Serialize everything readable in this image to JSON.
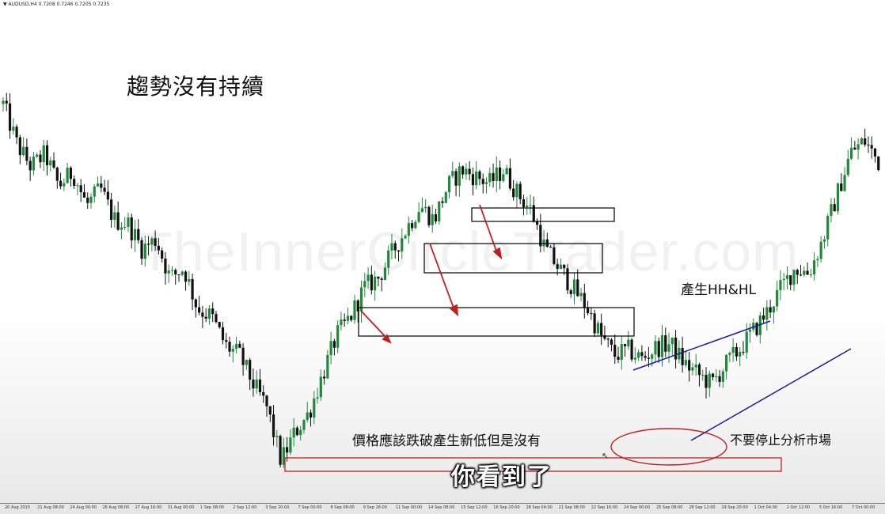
{
  "header": {
    "symbol": "AUDUSD,H4",
    "quote": "0.7208 0.7246 0.7205 0.7235"
  },
  "watermark": "TheInnerCircleTrader.com",
  "annotations": {
    "title": "趨勢沒有持續",
    "hh_hl": "產生HH&HL",
    "should_break": "價格應該跌破產生新低但是沒有",
    "dont_stop": "不要停止分析市場",
    "subtitle": "你看到了"
  },
  "colors": {
    "bull": "#1f8a3a",
    "bear": "#111111",
    "drawn_arrow": "#c0201f",
    "trendline": "#1a1a9a",
    "zone": "#c0201f"
  },
  "chart_data": {
    "type": "candlestick",
    "symbol": "AUDUSD",
    "timeframe": "H4",
    "x_tick_labels": [
      "20 Aug 2015",
      "21 Aug 08:00",
      "24 Aug 00:00",
      "26 Aug 08:00",
      "27 Aug 16:00",
      "31 Aug 00:00",
      "1 Sep 08:00",
      "2 Sep 12:00",
      "3 Sep 20:00",
      "7 Sep 00:00",
      "8 Sep 08:00",
      "9 Sep 16:00",
      "11 Sep 00:00",
      "14 Sep 08:00",
      "15 Sep 12:00",
      "16 Sep 20:00",
      "18 Sep 04:00",
      "21 Sep 08:00",
      "22 Sep 16:00",
      "24 Sep 00:00",
      "25 Sep 08:00",
      "28 Sep 12:00",
      "29 Sep 20:00",
      "1 Oct 04:00",
      "2 Oct 12:00",
      "5 Oct 16:00",
      "7 Oct 00:00"
    ],
    "price_path": [
      0.73,
      0.7258,
      0.7235,
      0.7248,
      0.7215,
      0.723,
      0.7195,
      0.7212,
      0.718,
      0.7176,
      0.715,
      0.716,
      0.712,
      0.713,
      0.7088,
      0.708,
      0.705,
      0.704,
      0.701,
      0.6985,
      0.693,
      0.696,
      0.698,
      0.702,
      0.706,
      0.708,
      0.711,
      0.712,
      0.7146,
      0.717,
      0.7195,
      0.718,
      0.7215,
      0.7232,
      0.7225,
      0.7218,
      0.7232,
      0.7208,
      0.719,
      0.715,
      0.713,
      0.711,
      0.709,
      0.706,
      0.704,
      0.7045,
      0.7036,
      0.7048,
      0.7052,
      0.7032,
      0.702,
      0.701,
      0.703,
      0.7046,
      0.7065,
      0.7085,
      0.711,
      0.713,
      0.7125,
      0.716,
      0.7205,
      0.725,
      0.7262,
      0.724
    ]
  }
}
